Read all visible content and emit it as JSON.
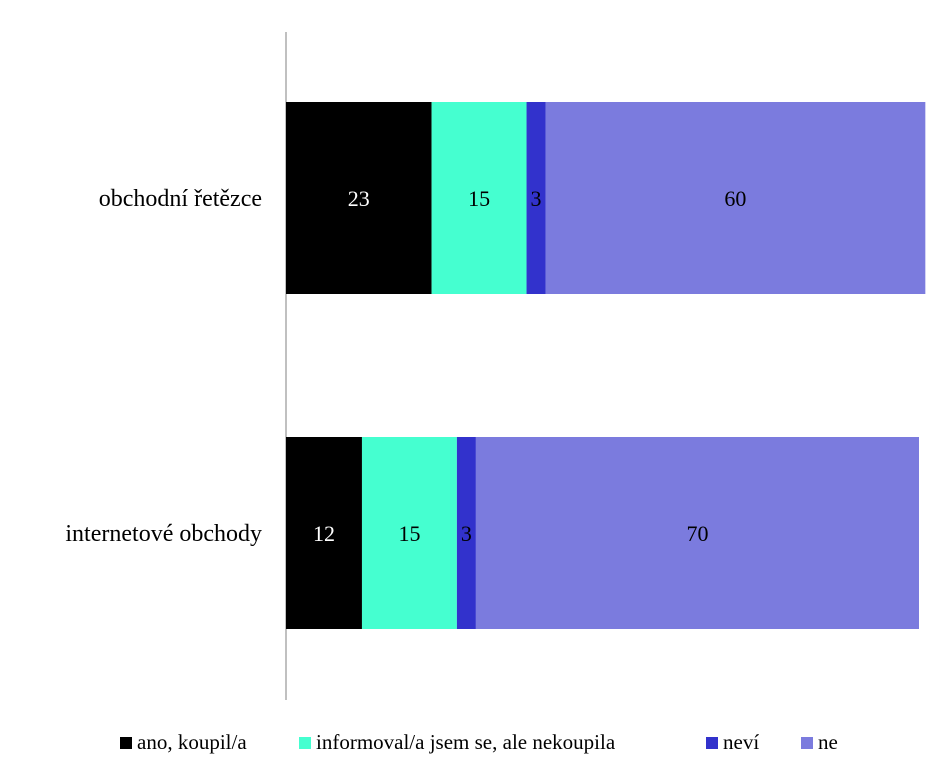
{
  "chart_data": {
    "type": "bar",
    "orientation": "horizontal",
    "stacked": true,
    "categories": [
      "obchodní řetězce",
      "internetové obchody"
    ],
    "series": [
      {
        "name": "ano, koupil/a",
        "values": [
          23,
          12
        ],
        "color": "#000000",
        "label_color": "#ffffff"
      },
      {
        "name": "informoval/a jsem se, ale nekoupila",
        "values": [
          15,
          15
        ],
        "color": "#45FFD0",
        "label_color": "#000000"
      },
      {
        "name": "neví",
        "values": [
          3,
          3
        ],
        "color": "#3232CC",
        "label_color": "#000000"
      },
      {
        "name": "ne",
        "values": [
          60,
          70
        ],
        "color": "#7B7BDE",
        "label_color": "#000000"
      }
    ],
    "xlim": [
      0,
      100
    ],
    "legend_position": "bottom",
    "grid": false,
    "axis_color": "#808080"
  }
}
